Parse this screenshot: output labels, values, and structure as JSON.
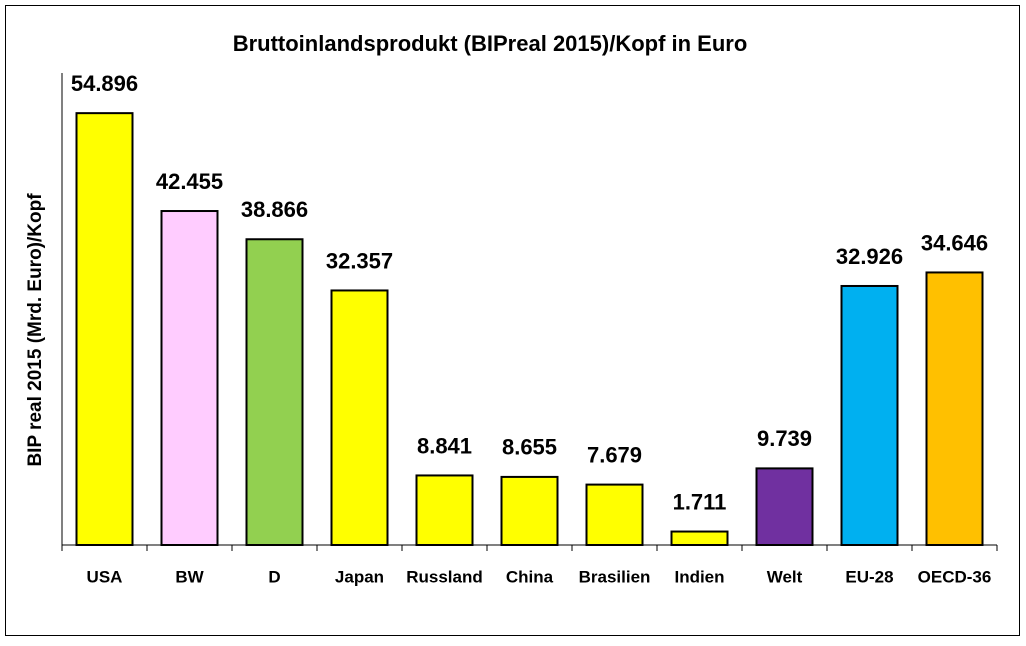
{
  "chart_data": {
    "type": "bar",
    "title": "Bruttoinlandsprodukt (BIPreal 2015)/Kopf in Euro",
    "y_label": "BIP real 2015 (Mrd. Euro)/Kopf",
    "categories": [
      "USA",
      "BW",
      "D",
      "Japan",
      "Russland",
      "China",
      "Brasilien",
      "Indien",
      "Welt",
      "EU-28",
      "OECD-36"
    ],
    "values": [
      54896,
      42455,
      38866,
      32357,
      8841,
      8655,
      7679,
      1711,
      9739,
      32926,
      34646
    ],
    "value_labels": [
      "54.896",
      "42.455",
      "38.866",
      "32.357",
      "8.841",
      "8.655",
      "7.679",
      "1.711",
      "9.739",
      "32.926",
      "34.646"
    ],
    "colors": [
      "#ffff00",
      "#ffccff",
      "#92d050",
      "#ffff00",
      "#ffff00",
      "#ffff00",
      "#ffff00",
      "#ffff00",
      "#7030a0",
      "#00b0f0",
      "#ffc000"
    ],
    "ylim": [
      0,
      60000
    ]
  }
}
